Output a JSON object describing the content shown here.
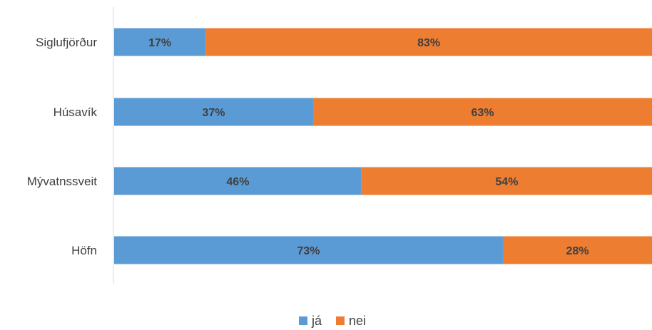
{
  "chart_data": {
    "type": "bar",
    "orientation": "horizontal",
    "stacked": "100%",
    "categories": [
      "Siglufjörður",
      "Húsavík",
      "Mývatnssveit",
      "Höfn"
    ],
    "series": [
      {
        "name": "já",
        "color": "#5b9bd5",
        "values": [
          17,
          37,
          46,
          73
        ],
        "labels": [
          "17%",
          "37%",
          "46%",
          "73%"
        ]
      },
      {
        "name": "nei",
        "color": "#ed7d31",
        "values": [
          83,
          63,
          54,
          28
        ],
        "labels": [
          "83%",
          "63%",
          "54%",
          "28%"
        ]
      }
    ],
    "legend_position": "bottom",
    "grid": false
  }
}
